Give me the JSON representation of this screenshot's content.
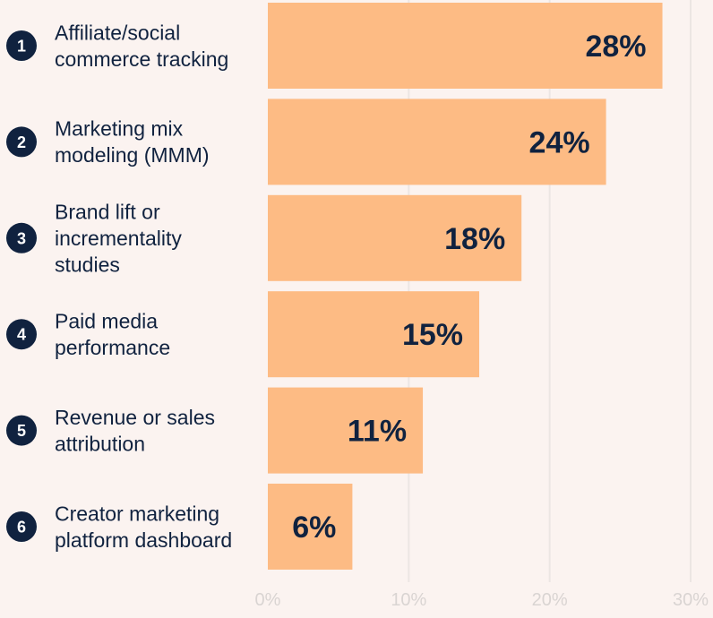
{
  "chart_data": {
    "type": "bar",
    "orientation": "horizontal",
    "ranks": [
      "1",
      "2",
      "3",
      "4",
      "5",
      "6"
    ],
    "categories": [
      [
        "Affiliate/social",
        "commerce tracking"
      ],
      [
        "Marketing mix",
        "modeling (MMM)"
      ],
      [
        "Brand lift or",
        "incrementality",
        "studies"
      ],
      [
        "Paid media",
        "performance"
      ],
      [
        "Revenue or sales",
        "attribution"
      ],
      [
        "Creator marketing",
        "platform dashboard"
      ]
    ],
    "values": [
      28,
      24,
      18,
      15,
      11,
      6
    ],
    "value_labels": [
      "28%",
      "24%",
      "18%",
      "15%",
      "11%",
      "6%"
    ],
    "xlim": [
      0,
      30
    ],
    "ticks": [
      0,
      10,
      20,
      30
    ],
    "tick_labels": [
      "0%",
      "10%",
      "20%",
      "30%"
    ],
    "grid": true,
    "colors": {
      "bar": "#FDBB84",
      "rank_circle": "#10223F",
      "text": "#10223F",
      "grid": "#ECE6E3",
      "tick_text": "#D9D4D2",
      "background": "#FBF3F0"
    }
  }
}
